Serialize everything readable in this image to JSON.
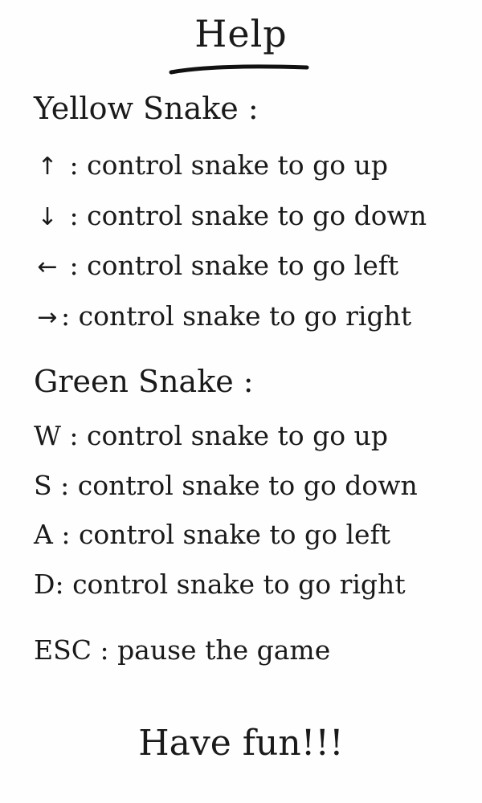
{
  "help_screen": {
    "title": "Help",
    "yellow_snake": {
      "heading": "Yellow Snake :",
      "controls": [
        {
          "key": "↑",
          "separator": " : ",
          "action": "control snake to go up"
        },
        {
          "key": "↓",
          "separator": " : ",
          "action": "control snake to go down"
        },
        {
          "key": "←",
          "separator": " : ",
          "action": "control snake to go left"
        },
        {
          "key": "→",
          "separator": ": ",
          "action": "control snake to go right"
        }
      ]
    },
    "green_snake": {
      "heading": "Green Snake :",
      "controls": [
        {
          "key": "W",
          "separator": " : ",
          "action": "control snake to go up"
        },
        {
          "key": "S",
          "separator": " : ",
          "action": "control snake to go down"
        },
        {
          "key": "A",
          "separator": " : ",
          "action": "control snake to go left"
        },
        {
          "key": "D",
          "separator": ": ",
          "action": "control snake to go right"
        }
      ]
    },
    "pause": {
      "key": "ESC",
      "separator": " : ",
      "action": "pause the game"
    },
    "footer": "Have fun!!!"
  }
}
